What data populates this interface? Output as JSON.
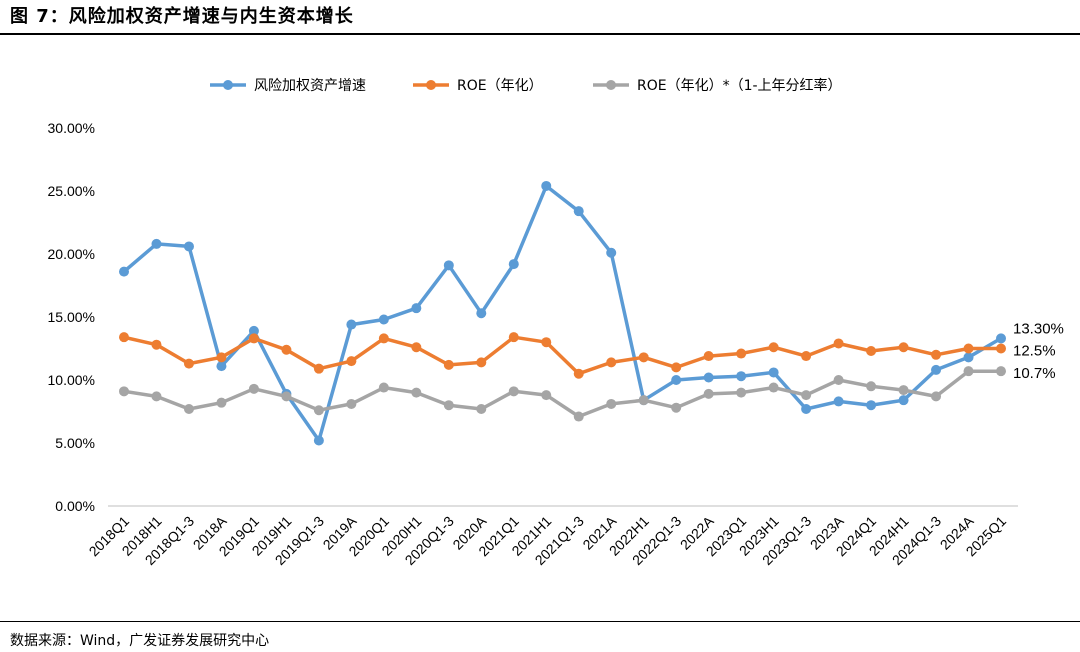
{
  "header": {
    "title": "图 7：风险加权资产增速与内生资本增长"
  },
  "footer": {
    "source": "数据来源：Wind，广发证券发展研究中心"
  },
  "chart_data": {
    "type": "line",
    "title": "",
    "xlabel": "",
    "ylabel": "",
    "ylim": [
      0,
      0.3
    ],
    "yticks": [
      "0.00%",
      "5.00%",
      "10.00%",
      "15.00%",
      "20.00%",
      "25.00%",
      "30.00%"
    ],
    "grid": false,
    "legend_position": "top",
    "categories": [
      "2018Q1",
      "2018H1",
      "2018Q1-3",
      "2018A",
      "2019Q1",
      "2019H1",
      "2019Q1-3",
      "2019A",
      "2020Q1",
      "2020H1",
      "2020Q1-3",
      "2020A",
      "2021Q1",
      "2021H1",
      "2021Q1-3",
      "2021A",
      "2022H1",
      "2022Q1-3",
      "2022A",
      "2023Q1",
      "2023H1",
      "2023Q1-3",
      "2023A",
      "2024Q1",
      "2024H1",
      "2024Q1-3",
      "2024A",
      "2025Q1"
    ],
    "series": [
      {
        "name": "风险加权资产增速",
        "color": "#5B9BD5",
        "values": [
          0.186,
          0.208,
          0.206,
          0.111,
          0.139,
          0.089,
          0.052,
          0.144,
          0.148,
          0.157,
          0.191,
          0.153,
          0.192,
          0.254,
          0.234,
          0.201,
          0.084,
          0.1,
          0.102,
          0.103,
          0.106,
          0.077,
          0.083,
          0.08,
          0.084,
          0.108,
          0.118,
          0.133
        ],
        "end_label": "13.30%"
      },
      {
        "name": "ROE（年化）",
        "color": "#ED7D31",
        "values": [
          0.134,
          0.128,
          0.113,
          0.118,
          0.133,
          0.124,
          0.109,
          0.115,
          0.133,
          0.126,
          0.112,
          0.114,
          0.134,
          0.13,
          0.105,
          0.114,
          0.118,
          0.11,
          0.119,
          0.121,
          0.126,
          0.119,
          0.129,
          0.123,
          0.126,
          0.12,
          0.125,
          0.125
        ],
        "end_label": "12.5%"
      },
      {
        "name": "ROE（年化）*（1-上年分红率）",
        "color": "#A5A5A5",
        "values": [
          0.091,
          0.087,
          0.077,
          0.082,
          0.093,
          0.087,
          0.076,
          0.081,
          0.094,
          0.09,
          0.08,
          0.077,
          0.091,
          0.088,
          0.071,
          0.081,
          0.084,
          0.078,
          0.089,
          0.09,
          0.094,
          0.088,
          0.1,
          0.095,
          0.092,
          0.087,
          0.107,
          0.107
        ],
        "end_label": "10.7%"
      }
    ]
  }
}
